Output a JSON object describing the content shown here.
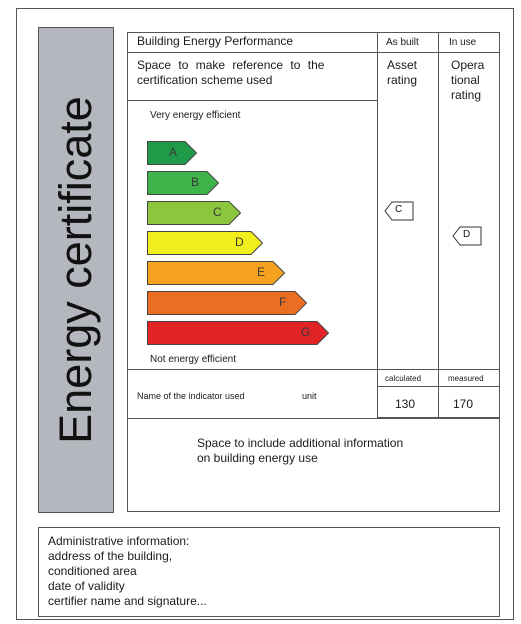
{
  "side_title": "Energy certificate",
  "header": {
    "performance": "Building Energy Performance",
    "as_built": "As built",
    "in_use": "In use"
  },
  "reference": {
    "line1": "Space to make reference to the",
    "line2": "certification scheme used"
  },
  "asset": {
    "line1": "Asset",
    "line2": "rating"
  },
  "operational": {
    "line1": "Opera",
    "line2": "tional",
    "line3": "rating"
  },
  "scale": {
    "top_label": "Very energy efficient",
    "bottom_label": "Not energy efficient",
    "bands": [
      {
        "letter": "A",
        "color": "#1f9a48"
      },
      {
        "letter": "B",
        "color": "#3db34a"
      },
      {
        "letter": "C",
        "color": "#8cc63f"
      },
      {
        "letter": "D",
        "color": "#f2ee1b"
      },
      {
        "letter": "E",
        "color": "#f4a21f"
      },
      {
        "letter": "F",
        "color": "#ec6e23"
      },
      {
        "letter": "G",
        "color": "#e32426"
      }
    ]
  },
  "asset_rating": "C",
  "operational_rating": "D",
  "indicator": {
    "name": "Name of the indicator used",
    "unit": "unit",
    "calculated_label": "calculated",
    "measured_label": "measured",
    "calculated_value": "130",
    "measured_value": "170"
  },
  "additional": {
    "line1": "Space to include additional information",
    "line2": "on building energy use"
  },
  "admin": {
    "lines": [
      "Administrative information:",
      "address of the building,",
      "conditioned area",
      "date of validity",
      "certifier name and signature..."
    ]
  }
}
